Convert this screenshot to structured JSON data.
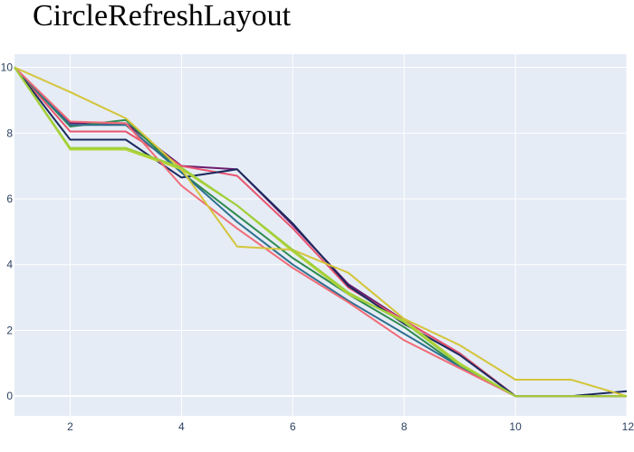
{
  "chart_data": {
    "type": "line",
    "title": "CircleRefreshLayout",
    "xlabel": "",
    "ylabel": "",
    "xlim": [
      1,
      12
    ],
    "ylim": [
      -0.6,
      10.4
    ],
    "x_ticks": [
      2,
      4,
      6,
      8,
      10,
      12
    ],
    "y_ticks": [
      0,
      2,
      4,
      6,
      8,
      10
    ],
    "grid": true,
    "legend": "none",
    "plot_background": "#e5ecf6",
    "grid_color": "#ffffff",
    "series": [
      {
        "color": "#6a1b6e",
        "values": [
          [
            1,
            10
          ],
          [
            2,
            8.3
          ],
          [
            3,
            8.3
          ],
          [
            4,
            7.0
          ],
          [
            5,
            6.9
          ],
          [
            6,
            5.2
          ],
          [
            7,
            3.4
          ],
          [
            8,
            2.3
          ],
          [
            9,
            1.3
          ],
          [
            10,
            0
          ],
          [
            11,
            0
          ],
          [
            12,
            0
          ]
        ]
      },
      {
        "color": "#e8556f",
        "values": [
          [
            1,
            10
          ],
          [
            2,
            8.05
          ],
          [
            3,
            8.05
          ],
          [
            4,
            7.0
          ],
          [
            5,
            6.7
          ],
          [
            6,
            5.1
          ],
          [
            7,
            3.3
          ],
          [
            8,
            2.3
          ],
          [
            9,
            1.3
          ],
          [
            10,
            0
          ],
          [
            11,
            0
          ],
          [
            12,
            0
          ]
        ]
      },
      {
        "color": "#1b2a5e",
        "values": [
          [
            1,
            10
          ],
          [
            2,
            7.8
          ],
          [
            3,
            7.8
          ],
          [
            4,
            6.65
          ],
          [
            5,
            6.9
          ],
          [
            6,
            5.25
          ],
          [
            7,
            3.35
          ],
          [
            8,
            2.2
          ],
          [
            9,
            1.25
          ],
          [
            10,
            0
          ],
          [
            11,
            0
          ],
          [
            12,
            0.15
          ]
        ]
      },
      {
        "color": "#2e8a4f",
        "values": [
          [
            1,
            10
          ],
          [
            2,
            8.2
          ],
          [
            3,
            8.4
          ],
          [
            4,
            6.8
          ],
          [
            5,
            5.5
          ],
          [
            6,
            4.2
          ],
          [
            7,
            3.1
          ],
          [
            8,
            2.1
          ],
          [
            9,
            0.9
          ],
          [
            10,
            0
          ],
          [
            11,
            0
          ],
          [
            12,
            0
          ]
        ]
      },
      {
        "color": "#2e6f8e",
        "values": [
          [
            1,
            10
          ],
          [
            2,
            8.25
          ],
          [
            3,
            8.25
          ],
          [
            4,
            6.8
          ],
          [
            5,
            5.3
          ],
          [
            6,
            4.0
          ],
          [
            7,
            2.9
          ],
          [
            8,
            1.9
          ],
          [
            9,
            0.9
          ],
          [
            10,
            0
          ],
          [
            11,
            0
          ],
          [
            12,
            0
          ]
        ]
      },
      {
        "color": "#b5d43a",
        "values": [
          [
            1,
            10
          ],
          [
            2,
            7.5
          ],
          [
            3,
            7.5
          ],
          [
            4,
            6.9
          ],
          [
            5,
            5.8
          ],
          [
            6,
            4.4
          ],
          [
            7,
            3.1
          ],
          [
            8,
            2.3
          ],
          [
            9,
            1.0
          ],
          [
            10,
            0
          ],
          [
            11,
            0
          ],
          [
            12,
            0
          ]
        ]
      },
      {
        "color": "#f06c77",
        "values": [
          [
            1,
            10
          ],
          [
            2,
            8.35
          ],
          [
            3,
            8.3
          ],
          [
            4,
            6.4
          ],
          [
            5,
            5.1
          ],
          [
            6,
            3.9
          ],
          [
            7,
            2.85
          ],
          [
            8,
            1.7
          ],
          [
            9,
            0.85
          ],
          [
            10,
            0
          ],
          [
            11,
            0
          ],
          [
            12,
            0
          ]
        ]
      },
      {
        "color": "#d4c53a",
        "values": [
          [
            1,
            10
          ],
          [
            2,
            9.25
          ],
          [
            3,
            8.45
          ],
          [
            4,
            6.9
          ],
          [
            5,
            4.55
          ],
          [
            6,
            4.45
          ],
          [
            7,
            3.75
          ],
          [
            8,
            2.35
          ],
          [
            9,
            1.55
          ],
          [
            10,
            0.5
          ],
          [
            11,
            0.5
          ],
          [
            12,
            0
          ]
        ]
      },
      {
        "color": "#9fcf3a",
        "values": [
          [
            1,
            10
          ],
          [
            2,
            7.55
          ],
          [
            3,
            7.55
          ],
          [
            4,
            6.95
          ],
          [
            5,
            5.8
          ],
          [
            6,
            4.45
          ],
          [
            7,
            3.15
          ],
          [
            8,
            2.25
          ],
          [
            9,
            0.95
          ],
          [
            10,
            0
          ],
          [
            11,
            0
          ],
          [
            12,
            0
          ]
        ]
      }
    ]
  }
}
